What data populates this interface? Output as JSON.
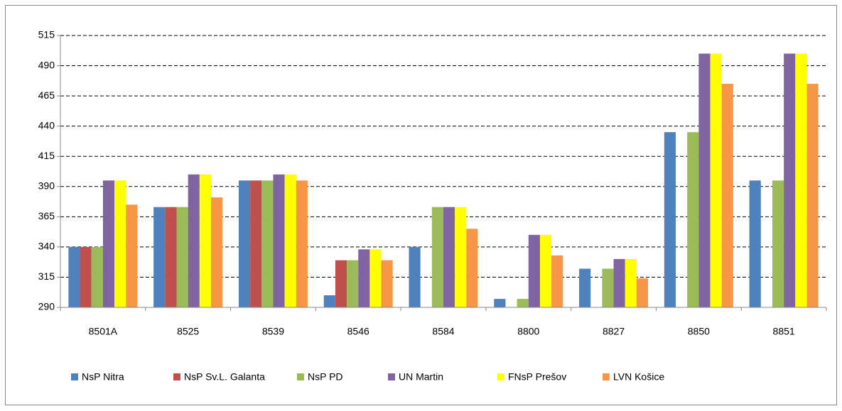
{
  "chart_data": {
    "type": "bar",
    "categories": [
      "8501A",
      "8525",
      "8539",
      "8546",
      "8584",
      "8800",
      "8827",
      "8850",
      "8851"
    ],
    "series": [
      {
        "name": "NsP Nitra",
        "color": "#4F81BD",
        "values": [
          340,
          373,
          395,
          300,
          340,
          297,
          322,
          435,
          395
        ]
      },
      {
        "name": "NsP Sv.L. Galanta",
        "color": "#C0504D",
        "values": [
          340,
          373,
          395,
          329,
          null,
          null,
          null,
          null,
          null
        ]
      },
      {
        "name": "NsP PD",
        "color": "#9BBB59",
        "values": [
          340,
          373,
          395,
          329,
          373,
          297,
          322,
          435,
          395
        ]
      },
      {
        "name": "UN Martin",
        "color": "#8064A2",
        "values": [
          395,
          400,
          400,
          338,
          373,
          350,
          330,
          500,
          500
        ]
      },
      {
        "name": "FNsP Prešov",
        "color": "#FFFF00",
        "values": [
          395,
          400,
          400,
          338,
          373,
          350,
          330,
          500,
          500
        ]
      },
      {
        "name": "LVN Košice",
        "color": "#F79646",
        "values": [
          375,
          381,
          395,
          329,
          355,
          333,
          314,
          475,
          475
        ]
      }
    ],
    "ylim": [
      290,
      515
    ],
    "yticks": [
      290,
      315,
      340,
      365,
      390,
      415,
      440,
      465,
      490,
      515
    ],
    "grid": true
  }
}
